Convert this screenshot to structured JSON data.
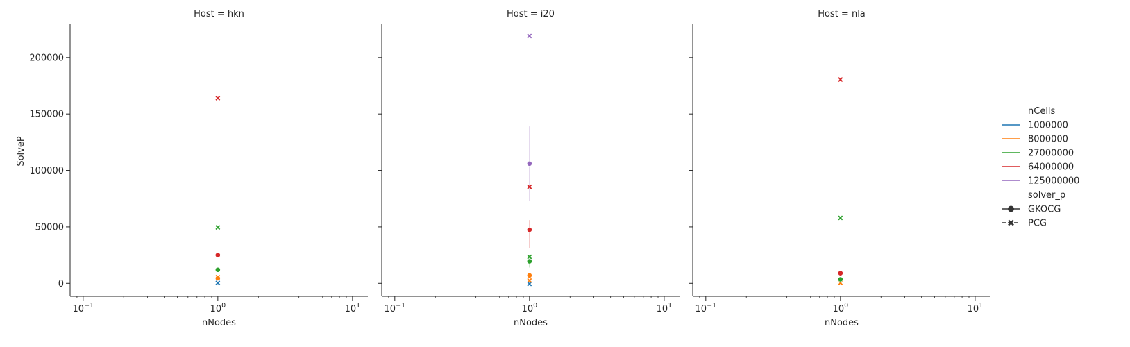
{
  "chart_data": {
    "type": "scatter",
    "facet_variable": "Host",
    "facet_titles": [
      "Host = hkn",
      "Host = i20",
      "Host = nla"
    ],
    "xlabel": "nNodes",
    "ylabel": "SolveP",
    "xscale": "log",
    "xlim": [
      0.08,
      13
    ],
    "ylim": [
      -11500,
      230000
    ],
    "x_ticks": [
      {
        "value": 0.1,
        "base": "10",
        "exp": "−1"
      },
      {
        "value": 1,
        "base": "10",
        "exp": "0"
      },
      {
        "value": 10,
        "base": "10",
        "exp": "1"
      }
    ],
    "y_ticks": [
      {
        "value": 0,
        "label": "0"
      },
      {
        "value": 50000,
        "label": "50000"
      },
      {
        "value": 100000,
        "label": "100000"
      },
      {
        "value": 150000,
        "label": "150000"
      },
      {
        "value": 200000,
        "label": "200000"
      }
    ],
    "grid": false,
    "legend": {
      "placement": "right",
      "hue_title": "nCells",
      "hue_entries": [
        {
          "label": "1000000",
          "color": "#1f77b4"
        },
        {
          "label": "8000000",
          "color": "#ff7f0e"
        },
        {
          "label": "27000000",
          "color": "#2ca02c"
        },
        {
          "label": "64000000",
          "color": "#d62728"
        },
        {
          "label": "125000000",
          "color": "#9467bd"
        }
      ],
      "style_title": "solver_p",
      "style_entries": [
        {
          "label": "GKOCG",
          "marker": "circle",
          "dash": "solid"
        },
        {
          "label": "PCG",
          "marker": "x",
          "dash": "dashed"
        }
      ]
    },
    "facets": [
      {
        "host": "hkn",
        "points": [
          {
            "x": 1,
            "y": 400,
            "nCells": "1000000",
            "solver_p": "PCG"
          },
          {
            "x": 1,
            "y": 5500,
            "nCells": "8000000",
            "solver_p": "PCG"
          },
          {
            "x": 1,
            "y": 49500,
            "nCells": "27000000",
            "solver_p": "PCG"
          },
          {
            "x": 1,
            "y": 164000,
            "nCells": "64000000",
            "solver_p": "PCG"
          },
          {
            "x": 1,
            "y": 4500,
            "nCells": "8000000",
            "solver_p": "GKOCG"
          },
          {
            "x": 1,
            "y": 12000,
            "nCells": "27000000",
            "solver_p": "GKOCG"
          },
          {
            "x": 1,
            "y": 25000,
            "nCells": "64000000",
            "solver_p": "GKOCG"
          }
        ],
        "error_bars": []
      },
      {
        "host": "i20",
        "points": [
          {
            "x": 1,
            "y": -500,
            "nCells": "1000000",
            "solver_p": "PCG"
          },
          {
            "x": 1,
            "y": 2500,
            "nCells": "8000000",
            "solver_p": "PCG"
          },
          {
            "x": 1,
            "y": 23500,
            "nCells": "27000000",
            "solver_p": "PCG"
          },
          {
            "x": 1,
            "y": 85500,
            "nCells": "64000000",
            "solver_p": "PCG"
          },
          {
            "x": 1,
            "y": 219000,
            "nCells": "125000000",
            "solver_p": "PCG"
          },
          {
            "x": 1,
            "y": 7000,
            "nCells": "8000000",
            "solver_p": "GKOCG"
          },
          {
            "x": 1,
            "y": 19500,
            "nCells": "27000000",
            "solver_p": "GKOCG"
          },
          {
            "x": 1,
            "y": 47500,
            "nCells": "64000000",
            "solver_p": "GKOCG"
          },
          {
            "x": 1,
            "y": 106000,
            "nCells": "125000000",
            "solver_p": "GKOCG"
          }
        ],
        "error_bars": [
          {
            "x": 1,
            "low": 73000,
            "high": 139000,
            "nCells": "125000000"
          },
          {
            "x": 1,
            "low": 31000,
            "high": 56000,
            "nCells": "64000000"
          },
          {
            "x": 1,
            "low": 14000,
            "high": 25000,
            "nCells": "27000000"
          }
        ]
      },
      {
        "host": "nla",
        "points": [
          {
            "x": 1,
            "y": 400,
            "nCells": "8000000",
            "solver_p": "PCG"
          },
          {
            "x": 1,
            "y": 58000,
            "nCells": "27000000",
            "solver_p": "PCG"
          },
          {
            "x": 1,
            "y": 180500,
            "nCells": "64000000",
            "solver_p": "PCG"
          },
          {
            "x": 1,
            "y": 3500,
            "nCells": "27000000",
            "solver_p": "GKOCG"
          },
          {
            "x": 1,
            "y": 9000,
            "nCells": "64000000",
            "solver_p": "GKOCG"
          }
        ],
        "error_bars": []
      }
    ]
  }
}
